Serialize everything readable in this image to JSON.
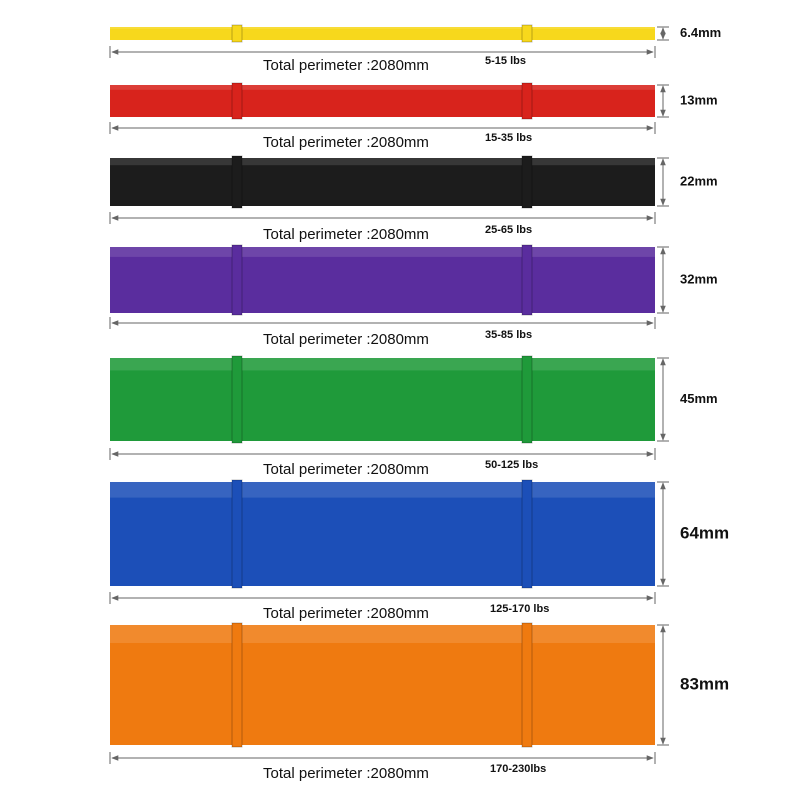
{
  "bands": [
    {
      "color": "#f7d81c",
      "width": "6.4mm",
      "perimeter": "Total perimeter :2080mm",
      "resistance": "5-15 lbs"
    },
    {
      "color": "#d8231c",
      "width": "13mm",
      "perimeter": "Total perimeter :2080mm",
      "resistance": "15-35 lbs"
    },
    {
      "color": "#1c1c1c",
      "width": "22mm",
      "perimeter": "Total perimeter :2080mm",
      "resistance": "25-65 lbs"
    },
    {
      "color": "#5a2d9e",
      "width": "32mm",
      "perimeter": "Total perimeter :2080mm",
      "resistance": "35-85 lbs"
    },
    {
      "color": "#1f9a3a",
      "width": "45mm",
      "perimeter": "Total perimeter :2080mm",
      "resistance": "50-125 lbs"
    },
    {
      "color": "#1c4fb8",
      "width": "64mm",
      "perimeter": "Total perimeter :2080mm",
      "resistance": "125-170 lbs"
    },
    {
      "color": "#ef7a10",
      "width": "83mm",
      "perimeter": "Total perimeter :2080mm",
      "resistance": "170-230lbs"
    }
  ]
}
